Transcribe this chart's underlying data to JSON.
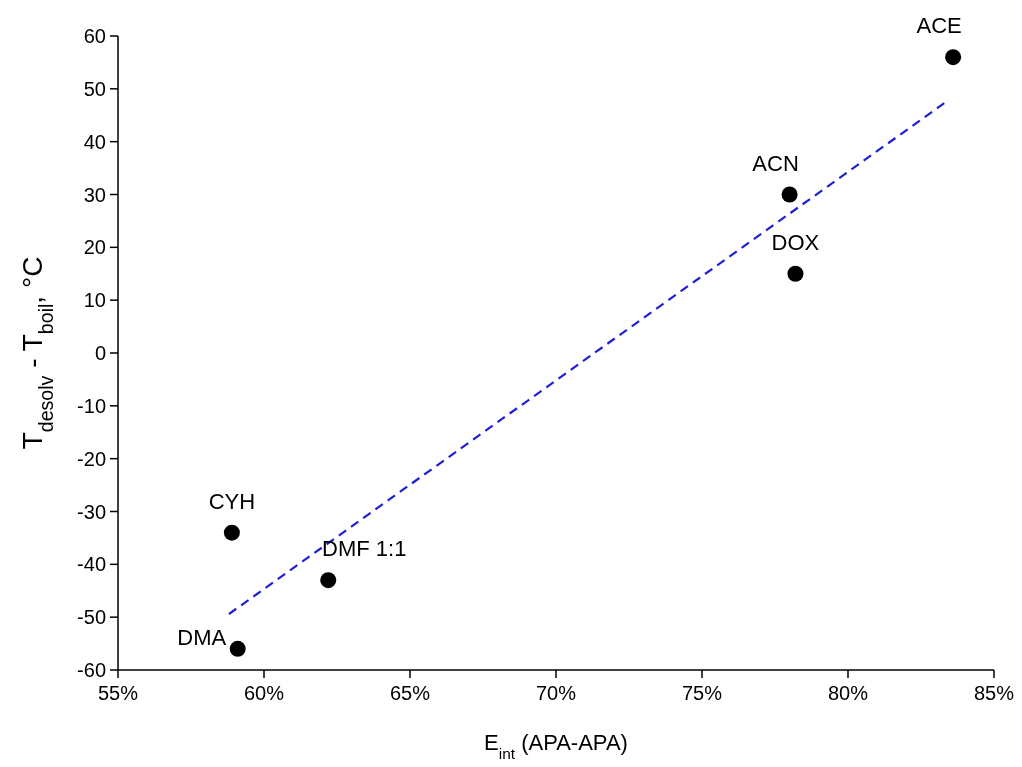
{
  "chart_data": {
    "type": "scatter",
    "xlabel": "E$_{int}$ (APA-APA)",
    "ylabel": "T$_{desolv}$ - T$_{boil}$, °C",
    "xlim": [
      55,
      85
    ],
    "xticks": [
      {
        "value": 55,
        "label": "55%"
      },
      {
        "value": 60,
        "label": "60%"
      },
      {
        "value": 65,
        "label": "65%"
      },
      {
        "value": 70,
        "label": "70%"
      },
      {
        "value": 75,
        "label": "75%"
      },
      {
        "value": 80,
        "label": "80%"
      },
      {
        "value": 85,
        "label": "85%"
      }
    ],
    "ylim": [
      -60,
      60
    ],
    "yticks": [
      -60,
      -50,
      -40,
      -30,
      -20,
      -10,
      0,
      10,
      20,
      30,
      40,
      50,
      60
    ],
    "grid": false,
    "marker": "circle",
    "series": [
      {
        "color": "#000000",
        "x": [
          83.6,
          78,
          78.2,
          58.9,
          62.2,
          59.1
        ],
        "values": [
          56,
          30,
          15,
          -34,
          -43,
          -56
        ]
      },
      {
        "type": "line",
        "color": "#1f1fd6",
        "line_style": "dashed",
        "marker": "none",
        "x": [
          58.8,
          83.4
        ],
        "values": [
          -49.4,
          47.7
        ]
      }
    ],
    "annotations": [
      {
        "text": "ACE",
        "x": 83.6,
        "y": 56
      },
      {
        "text": "ACN",
        "x": 78,
        "y": 30
      },
      {
        "text": "DOX",
        "x": 78.2,
        "y": 15
      },
      {
        "text": "CYH",
        "x": 58.9,
        "y": -34
      },
      {
        "text": "DMF 1:1",
        "x": 62.2,
        "y": -43
      },
      {
        "text": "DMA",
        "x": 59.1,
        "y": -56
      }
    ]
  }
}
